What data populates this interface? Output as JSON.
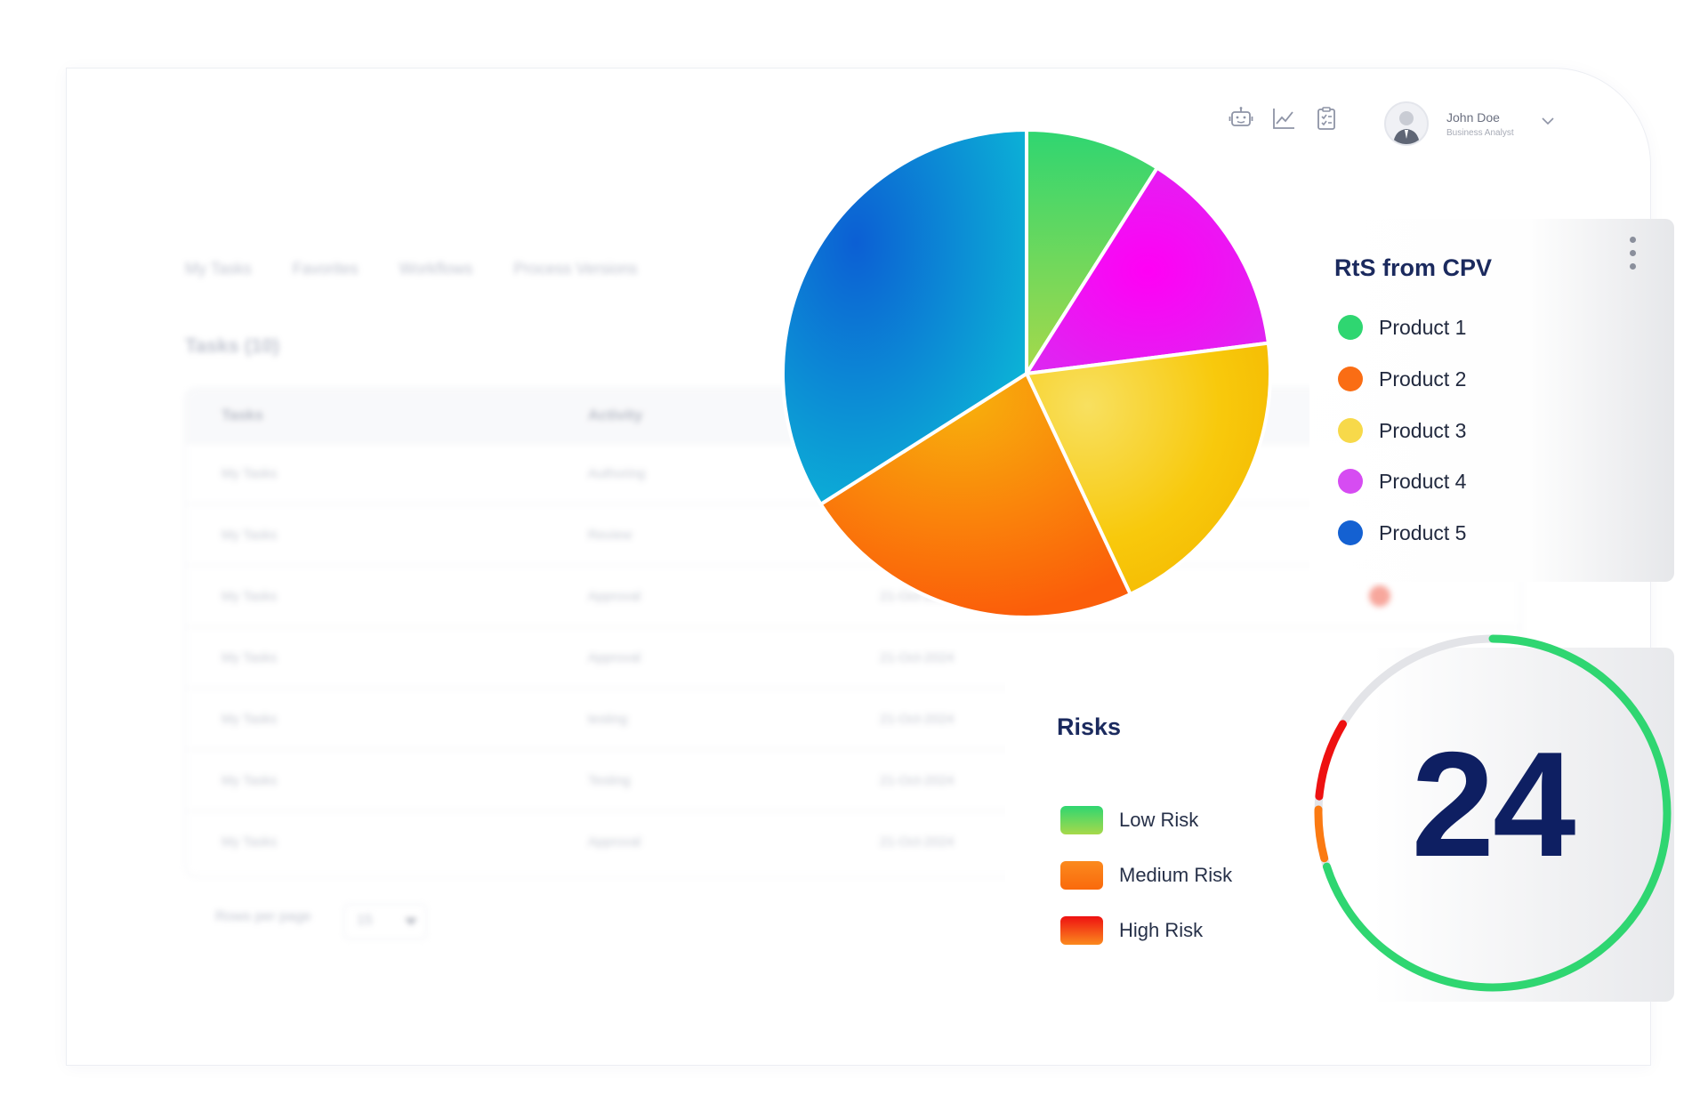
{
  "header": {
    "icons": [
      "robot-icon",
      "line-chart-icon",
      "clipboard-icon"
    ],
    "user": {
      "name": "John Doe",
      "role": "Business Analyst"
    }
  },
  "background": {
    "tabs": [
      "My Tasks",
      "Favorites",
      "Workflows",
      "Process Versions"
    ],
    "tasks_title": "Tasks (10)",
    "columns": [
      "Tasks",
      "Activity"
    ],
    "rows": [
      {
        "task": "My Tasks",
        "activity": "Authoring",
        "date": ""
      },
      {
        "task": "My Tasks",
        "activity": "Review",
        "date": ""
      },
      {
        "task": "My Tasks",
        "activity": "Approval",
        "date": "21-Oct-2024"
      },
      {
        "task": "My Tasks",
        "activity": "Approval",
        "date": "21-Oct-2024"
      },
      {
        "task": "My Tasks",
        "activity": "testing",
        "date": "21-Oct-2024"
      },
      {
        "task": "My Tasks",
        "activity": "Testing",
        "date": "21-Oct-2024"
      },
      {
        "task": "My Tasks",
        "activity": "Approval",
        "date": "21-Oct-2024"
      }
    ],
    "rows_per_page_label": "Rows per page",
    "rows_per_page_value": "15"
  },
  "rts_card": {
    "title": "RtS from CPV",
    "legend": [
      {
        "label": "Product 1",
        "color": "#2fd671"
      },
      {
        "label": "Product 2",
        "color": "#fa6d14"
      },
      {
        "label": "Product 3",
        "color": "#f7d94a"
      },
      {
        "label": "Product 4",
        "color": "#d64cf2"
      },
      {
        "label": "Product 5",
        "color": "#1461d2"
      }
    ]
  },
  "chart_data": {
    "type": "pie",
    "title": "RtS from CPV",
    "categories": [
      "Product 1",
      "Product 4",
      "Product 3",
      "Product 2",
      "Product 5"
    ],
    "values": [
      9,
      14,
      20,
      23,
      34
    ],
    "colors": [
      "#2fd671",
      "#ff00f5",
      "#f8c90c",
      "#fb7a09",
      "#0b71d6"
    ]
  },
  "risk_card": {
    "title": "Risks",
    "legend": [
      {
        "label": "Low Risk",
        "color_top": "#2fd671",
        "color_bottom": "#a7d94a"
      },
      {
        "label": "Medium Risk",
        "color_top": "#fb8a1e",
        "color_bottom": "#fa6a0c"
      },
      {
        "label": "High Risk",
        "color_top": "#ee1111",
        "color_bottom": "#fb8a1e"
      }
    ],
    "total": "24",
    "gauge": {
      "low_fraction": 0.7,
      "medium_fraction": 0.045,
      "high_fraction": 0.07,
      "low_color": "#2fd671",
      "medium_color": "#fb7a12",
      "high_color": "#ee1111",
      "track_color": "#e3e4e8"
    }
  }
}
